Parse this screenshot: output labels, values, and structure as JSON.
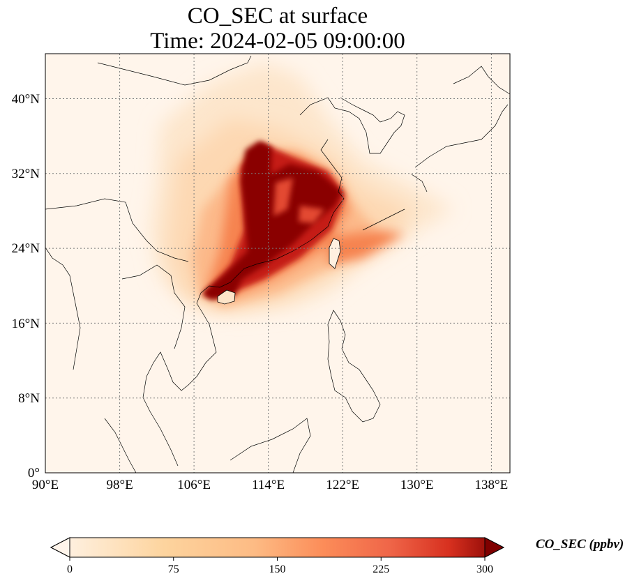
{
  "title_line1": "CO_SEC at surface",
  "title_line2": "Time: 2024-02-05 09:00:00",
  "map": {
    "lon_range": [
      90,
      140
    ],
    "lat_range": [
      0,
      44
    ],
    "lon_ticks": [
      "90°E",
      "98°E",
      "106°E",
      "114°E",
      "122°E",
      "130°E",
      "138°E"
    ],
    "lat_ticks": [
      "0°",
      "8°N",
      "16°N",
      "24°N",
      "32°N",
      "40°N"
    ],
    "lon_tick_values": [
      90,
      98,
      106,
      114,
      122,
      130,
      138
    ],
    "lat_tick_values": [
      0,
      8,
      16,
      24,
      32,
      40
    ],
    "gridlines": true,
    "background_color": "#fff5eb"
  },
  "colorbar": {
    "label": "CO_SEC (ppbv)",
    "ticks": [
      "0",
      "75",
      "150",
      "225",
      "300"
    ],
    "tick_values": [
      0,
      75,
      150,
      225,
      300
    ],
    "range": [
      0,
      300
    ],
    "colormap": "OrRd",
    "extend": "both"
  }
}
